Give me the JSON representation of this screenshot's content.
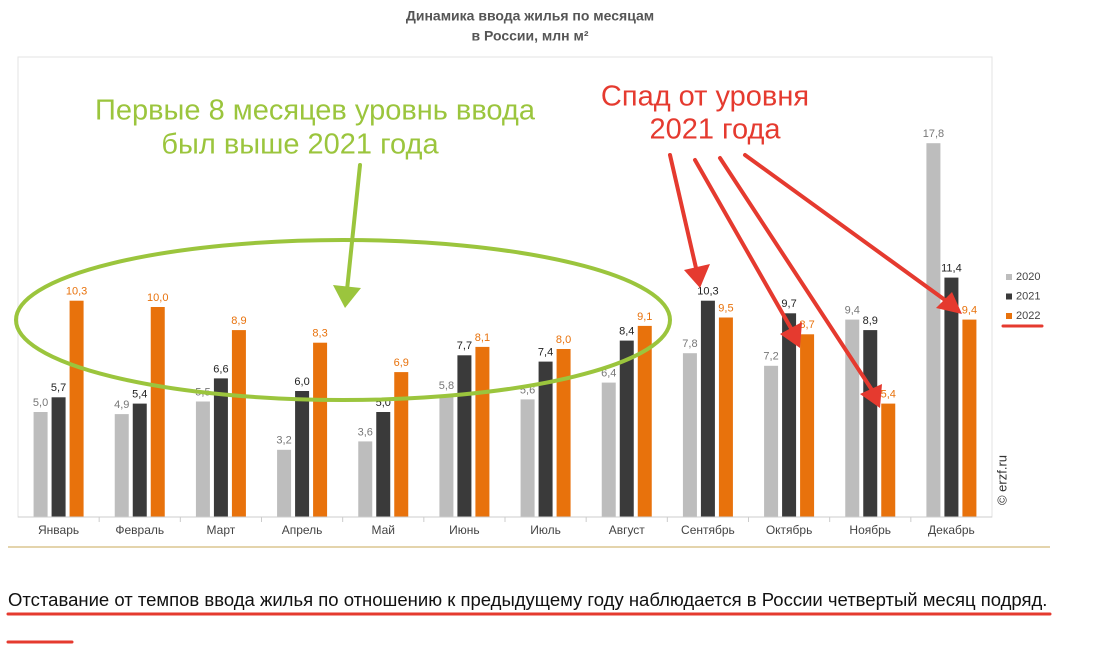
{
  "chart_data": {
    "type": "bar",
    "title": [
      "Динамика ввода жилья по месяцам",
      "в России, млн м²"
    ],
    "categories": [
      "Январь",
      "Февраль",
      "Март",
      "Апрель",
      "Май",
      "Июнь",
      "Июль",
      "Август",
      "Сентябрь",
      "Октябрь",
      "Ноябрь",
      "Декабрь"
    ],
    "series": [
      {
        "name": "2020",
        "color": "#bdbdbd",
        "values": [
          5.0,
          4.9,
          5.5,
          3.2,
          3.6,
          5.8,
          5.6,
          6.4,
          7.8,
          7.2,
          9.4,
          17.8
        ],
        "value_labels": [
          "5,0",
          "4,9",
          "5,5",
          "3,2",
          "3,6",
          "5,8",
          "5,6",
          "6,4",
          "7,8",
          "7,2",
          "9,4",
          "17,8"
        ]
      },
      {
        "name": "2021",
        "color": "#3a3a3a",
        "values": [
          5.7,
          5.4,
          6.6,
          6.0,
          5.0,
          7.7,
          7.4,
          8.4,
          10.3,
          9.7,
          8.9,
          11.4
        ],
        "value_labels": [
          "5,7",
          "5,4",
          "6,6",
          "6,0",
          "5,0",
          "7,7",
          "7,4",
          "8,4",
          "10,3",
          "9,7",
          "8,9",
          "11,4"
        ]
      },
      {
        "name": "2022",
        "color": "#e8720c",
        "values": [
          10.3,
          10.0,
          8.9,
          8.3,
          6.9,
          8.1,
          8.0,
          9.1,
          9.5,
          8.7,
          5.4,
          9.4
        ],
        "value_labels": [
          "10,3",
          "10,0",
          "8,9",
          "8,3",
          "6,9",
          "8,1",
          "8,0",
          "9,1",
          "9,5",
          "8,7",
          "5,4",
          "9,4"
        ]
      }
    ],
    "ylim": [
      0,
      20
    ],
    "legend": "right",
    "annotations": [
      {
        "lines": [
          "Первые 8 месяцев уровнь ввода",
          "был выше 2021 года"
        ],
        "color": "#9bc53d"
      },
      {
        "lines": [
          "Спад от уровня",
          "2021 года"
        ],
        "color": "#e53a2f"
      }
    ],
    "source": "© erzf.ru"
  },
  "text": "Отставание от темпов ввода жилья по отношению к предыдущему году наблюдается в России четвертый месяц подряд."
}
